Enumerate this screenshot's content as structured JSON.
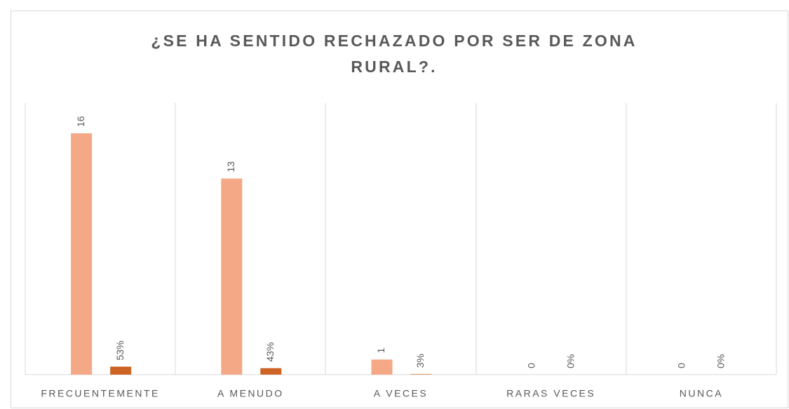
{
  "chart_data": {
    "type": "bar",
    "title": "¿SE HA SENTIDO RECHAZADO POR SER DE ZONA RURAL?.",
    "categories": [
      "FRECUENTEMENTE",
      "A MENUDO",
      "A VECES",
      "RARAS VECES",
      "NUNCA"
    ],
    "series": [
      {
        "color": "#f4a886",
        "values": [
          16,
          13,
          1,
          0,
          0
        ]
      },
      {
        "color": "#cd6425",
        "values": [
          0.53,
          0.43,
          0.03,
          0,
          0
        ],
        "value_labels": [
          "53%",
          "43%",
          "3%",
          "0%",
          "0%"
        ]
      }
    ],
    "ylim": [
      0,
      18
    ]
  }
}
